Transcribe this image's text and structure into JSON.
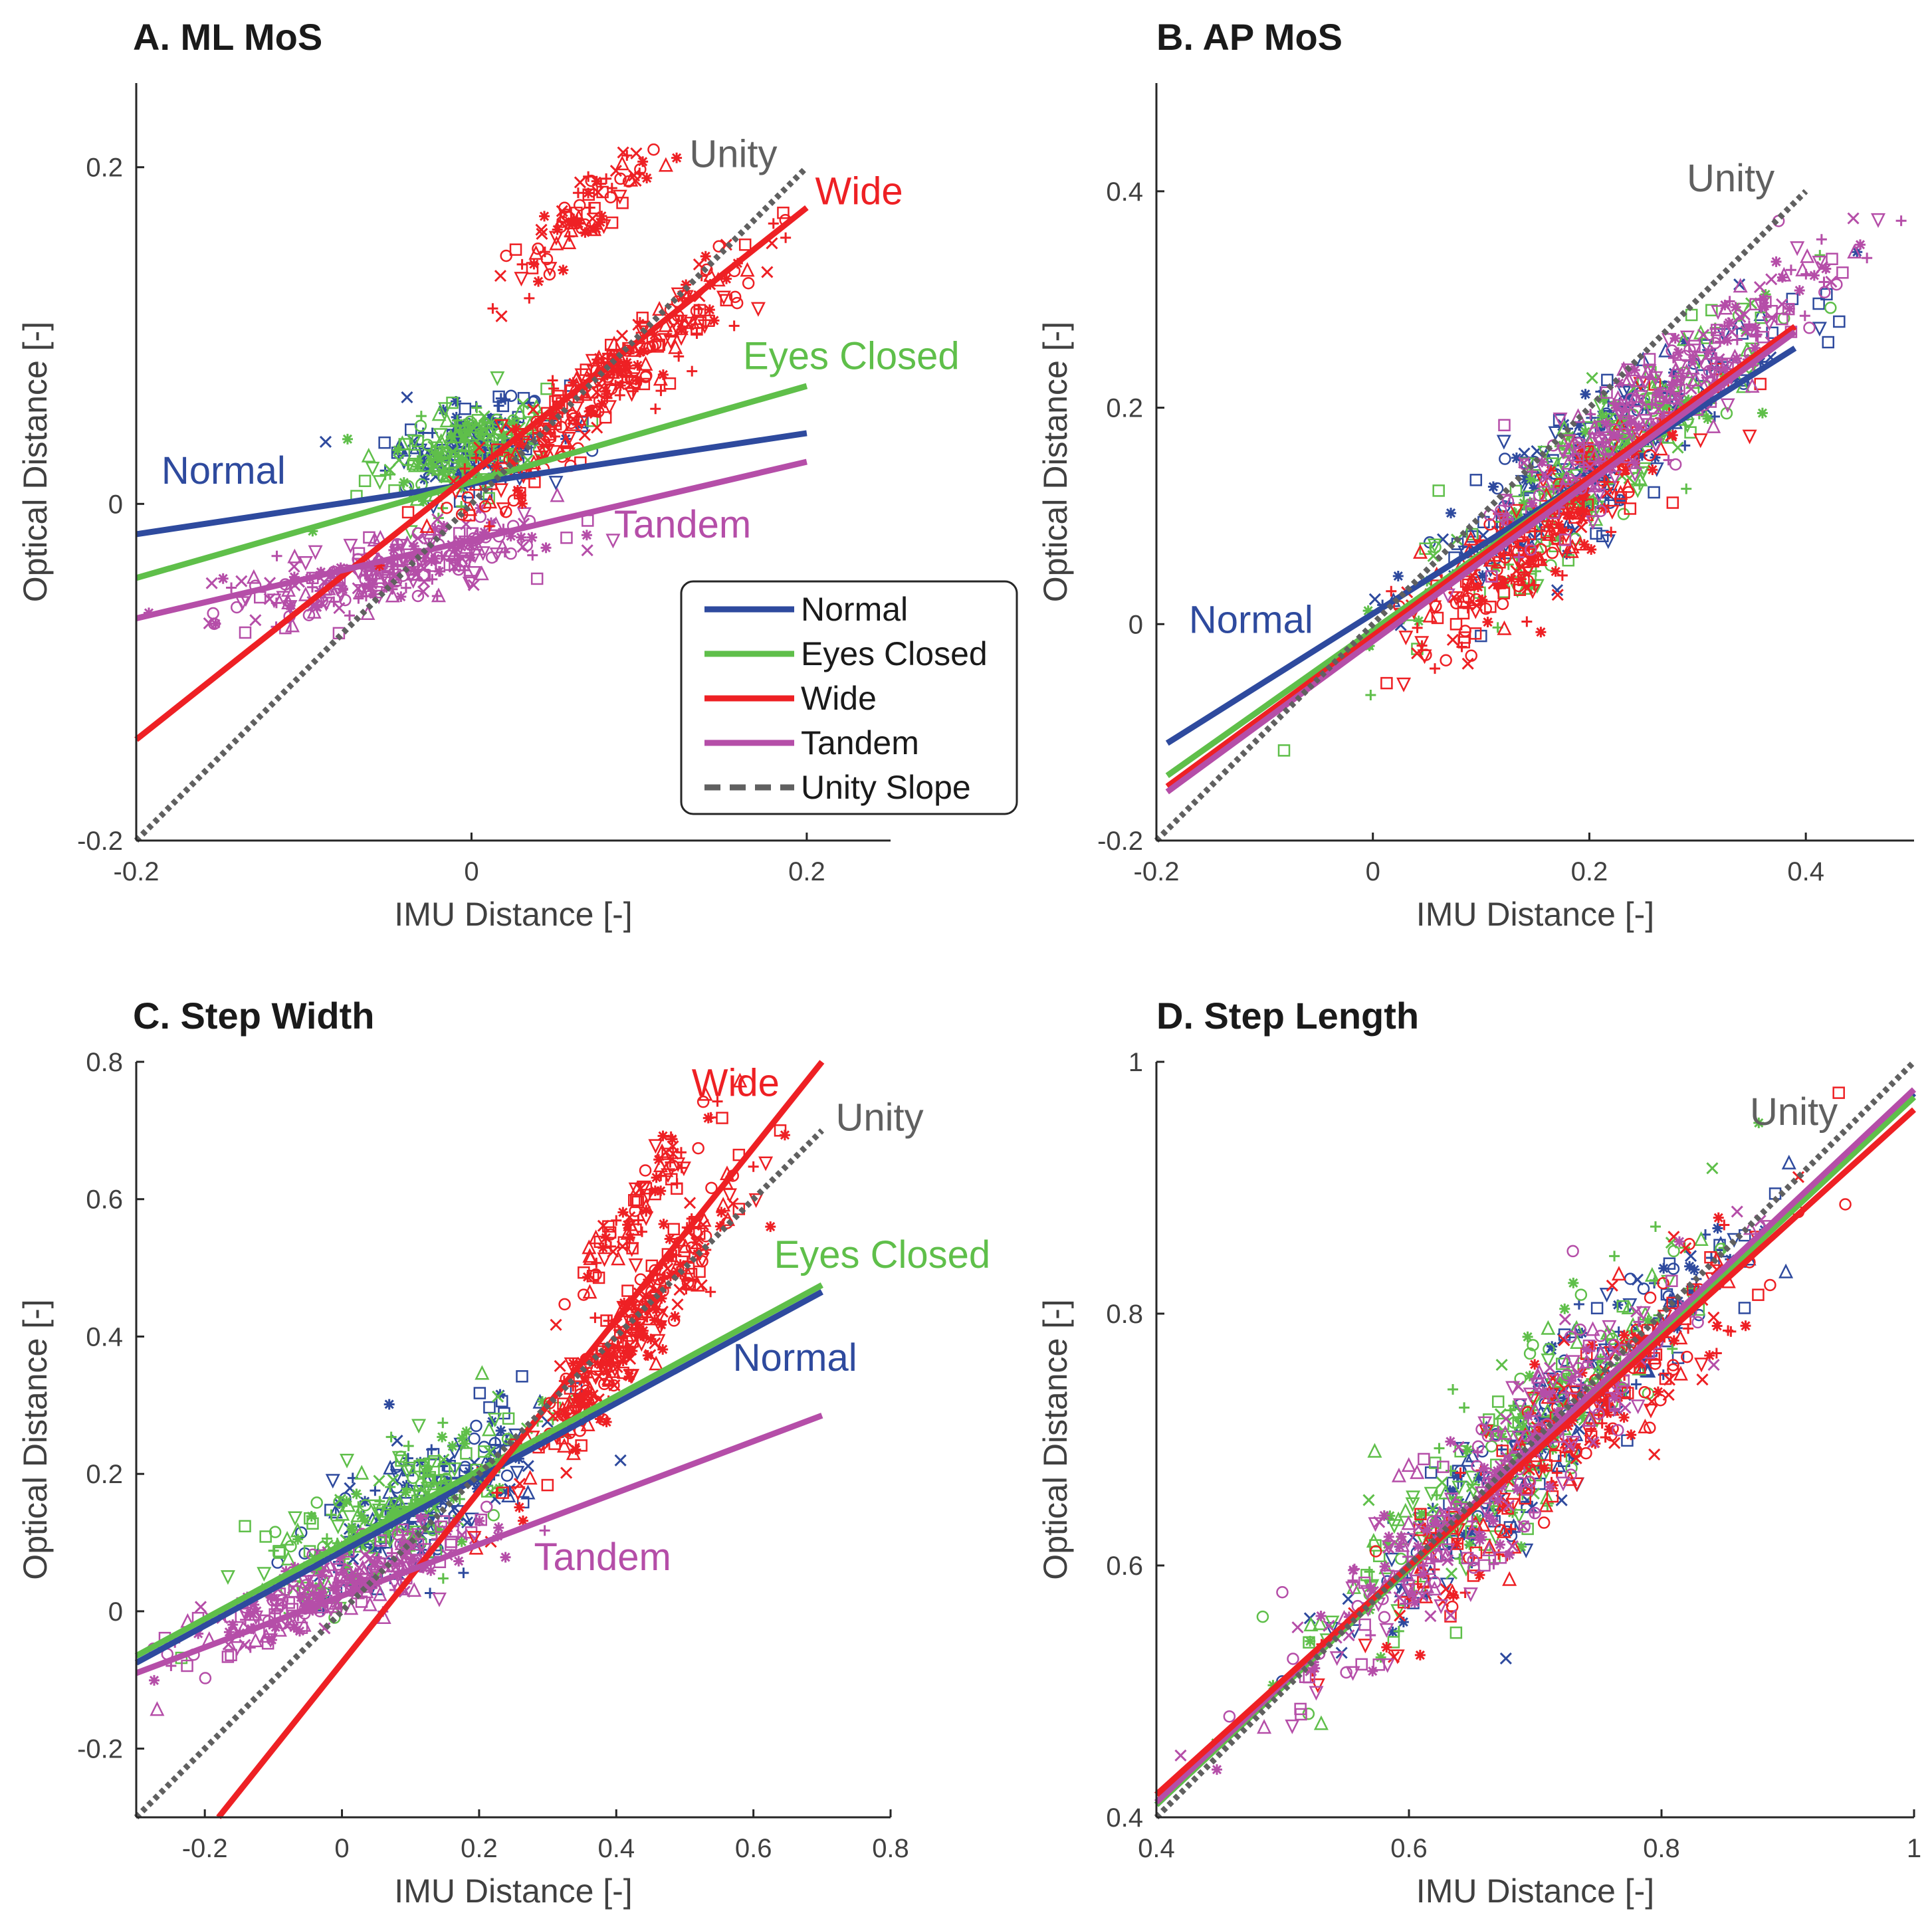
{
  "colors": {
    "Normal": "#2e4a9e",
    "Eyes Closed": "#5fbf4a",
    "Wide": "#ee2024",
    "Tandem": "#b54ea8",
    "Unity": "#606060"
  },
  "legend": {
    "entries": [
      {
        "label": "Normal",
        "series": "Normal",
        "style": "solid"
      },
      {
        "label": "Eyes Closed",
        "series": "Eyes Closed",
        "style": "solid"
      },
      {
        "label": "Wide",
        "series": "Wide",
        "style": "solid"
      },
      {
        "label": "Tandem",
        "series": "Tandem",
        "style": "solid"
      },
      {
        "label": "Unity Slope",
        "series": "Unity",
        "style": "dashed"
      }
    ]
  },
  "chart_data": [
    {
      "id": "A",
      "type": "scatter",
      "title": "A. ML MoS",
      "xlabel": "IMU Distance [-]",
      "ylabel": "Optical Distance [-]",
      "xlim": [
        -0.2,
        0.25
      ],
      "ylim": [
        -0.2,
        0.25
      ],
      "xticks": [
        -0.2,
        0,
        0.2
      ],
      "xtick_labels": [
        "-0.2",
        "0",
        "0.2"
      ],
      "yticks": [
        -0.2,
        0,
        0.2
      ],
      "ytick_labels": [
        "-0.2",
        "0",
        "0.2"
      ],
      "unity": {
        "x": [
          -0.2,
          0.2
        ]
      },
      "fits": [
        {
          "series": "Normal",
          "x": [
            -0.2,
            0.2
          ],
          "y": [
            -0.018,
            0.042
          ]
        },
        {
          "series": "Eyes Closed",
          "x": [
            -0.2,
            0.2
          ],
          "y": [
            -0.044,
            0.07
          ]
        },
        {
          "series": "Wide",
          "x": [
            -0.2,
            0.2
          ],
          "y": [
            -0.14,
            0.176
          ]
        },
        {
          "series": "Tandem",
          "x": [
            -0.2,
            0.2
          ],
          "y": [
            -0.068,
            0.025
          ]
        }
      ],
      "clouds": [
        {
          "series": "Normal",
          "cx": 0.0,
          "cy": 0.035,
          "sx": 0.025,
          "sy": 0.03,
          "n": 150
        },
        {
          "series": "Eyes Closed",
          "cx": -0.01,
          "cy": 0.03,
          "sx": 0.025,
          "sy": 0.03,
          "n": 170
        },
        {
          "series": "Tandem",
          "cx": -0.05,
          "cy": -0.04,
          "sx": 0.05,
          "sy": 0.022,
          "n": 260
        },
        {
          "series": "Wide",
          "cx": 0.08,
          "cy": 0.07,
          "sx": 0.045,
          "sy": 0.03,
          "n": 280
        },
        {
          "series": "Wide",
          "cx": 0.065,
          "cy": 0.17,
          "sx": 0.022,
          "sy": 0.025,
          "n": 90
        }
      ],
      "labels": [
        {
          "text": "Unity",
          "series": "Unity",
          "x": 0.13,
          "y": 0.2
        },
        {
          "text": "Wide",
          "series": "Wide",
          "x": 0.205,
          "y": 0.178
        },
        {
          "text": "Eyes Closed",
          "series": "Eyes Closed",
          "x": 0.162,
          "y": 0.08
        },
        {
          "text": "Normal",
          "series": "Normal",
          "x": -0.185,
          "y": 0.012
        },
        {
          "text": "Tandem",
          "series": "Tandem",
          "x": 0.085,
          "y": -0.02
        }
      ],
      "legend": "inside-lower-right"
    },
    {
      "id": "B",
      "type": "scatter",
      "title": "B. AP MoS",
      "xlabel": "IMU Distance [-]",
      "ylabel": "Optical Distance [-]",
      "xlim": [
        -0.2,
        0.5
      ],
      "ylim": [
        -0.2,
        0.5
      ],
      "xticks": [
        -0.2,
        0,
        0.2,
        0.4
      ],
      "xtick_labels": [
        "-0.2",
        "0",
        "0.2",
        "0.4"
      ],
      "yticks": [
        -0.2,
        0,
        0.2,
        0.4
      ],
      "ytick_labels": [
        "-0.2",
        "0",
        "0.2",
        "0.4"
      ],
      "unity": {
        "x": [
          -0.2,
          0.4
        ]
      },
      "fits": [
        {
          "series": "Normal",
          "x": [
            -0.19,
            0.39
          ],
          "y": [
            -0.11,
            0.255
          ]
        },
        {
          "series": "Eyes Closed",
          "x": [
            -0.19,
            0.39
          ],
          "y": [
            -0.14,
            0.27
          ]
        },
        {
          "series": "Wide",
          "x": [
            -0.19,
            0.39
          ],
          "y": [
            -0.15,
            0.275
          ]
        },
        {
          "series": "Tandem",
          "x": [
            -0.19,
            0.39
          ],
          "y": [
            -0.155,
            0.27
          ]
        }
      ],
      "clouds": [
        {
          "series": "Normal",
          "cx": 0.2,
          "cy": 0.15,
          "sx": 0.085,
          "sy": 0.07,
          "n": 220
        },
        {
          "series": "Eyes Closed",
          "cx": 0.2,
          "cy": 0.14,
          "sx": 0.085,
          "sy": 0.07,
          "n": 220
        },
        {
          "series": "Wide",
          "cx": 0.15,
          "cy": 0.08,
          "sx": 0.07,
          "sy": 0.06,
          "n": 240
        },
        {
          "series": "Tandem",
          "cx": 0.27,
          "cy": 0.21,
          "sx": 0.075,
          "sy": 0.055,
          "n": 280
        }
      ],
      "labels": [
        {
          "text": "Unity",
          "series": "Unity",
          "x": 0.29,
          "y": 0.4
        },
        {
          "text": "Normal",
          "series": "Normal",
          "x": -0.17,
          "y": -0.008
        }
      ],
      "legend": "none"
    },
    {
      "id": "C",
      "type": "scatter",
      "title": "C. Step Width",
      "xlabel": "IMU Distance [-]",
      "ylabel": "Optical Distance [-]",
      "xlim": [
        -0.3,
        0.8
      ],
      "ylim": [
        -0.3,
        0.8
      ],
      "xticks": [
        -0.2,
        0,
        0.2,
        0.4,
        0.6,
        0.8
      ],
      "xtick_labels": [
        "-0.2",
        "0",
        "0.2",
        "0.4",
        "0.6",
        "0.8"
      ],
      "yticks": [
        -0.2,
        0,
        0.2,
        0.4,
        0.6,
        0.8
      ],
      "ytick_labels": [
        "-0.2",
        "0",
        "0.2",
        "0.4",
        "0.6",
        "0.8"
      ],
      "unity": {
        "x": [
          -0.3,
          0.7
        ]
      },
      "fits": [
        {
          "series": "Normal",
          "x": [
            -0.3,
            0.7
          ],
          "y": [
            -0.075,
            0.465
          ]
        },
        {
          "series": "Eyes Closed",
          "x": [
            -0.3,
            0.7
          ],
          "y": [
            -0.065,
            0.475
          ]
        },
        {
          "series": "Wide",
          "x": [
            -0.18,
            0.7
          ],
          "y": [
            -0.3,
            0.8
          ]
        },
        {
          "series": "Tandem",
          "x": [
            -0.3,
            0.7
          ],
          "y": [
            -0.09,
            0.285
          ]
        }
      ],
      "clouds": [
        {
          "series": "Normal",
          "cx": 0.12,
          "cy": 0.16,
          "sx": 0.09,
          "sy": 0.1,
          "n": 180
        },
        {
          "series": "Eyes Closed",
          "cx": 0.08,
          "cy": 0.15,
          "sx": 0.11,
          "sy": 0.1,
          "n": 200
        },
        {
          "series": "Tandem",
          "cx": -0.02,
          "cy": 0.03,
          "sx": 0.11,
          "sy": 0.06,
          "n": 260
        },
        {
          "series": "Wide",
          "cx": 0.42,
          "cy": 0.4,
          "sx": 0.08,
          "sy": 0.08,
          "n": 300
        },
        {
          "series": "Wide",
          "cx": 0.44,
          "cy": 0.6,
          "sx": 0.05,
          "sy": 0.05,
          "n": 90
        }
      ],
      "labels": [
        {
          "text": "Wide",
          "series": "Wide",
          "x": 0.51,
          "y": 0.75
        },
        {
          "text": "Unity",
          "series": "Unity",
          "x": 0.72,
          "y": 0.7
        },
        {
          "text": "Eyes Closed",
          "series": "Eyes Closed",
          "x": 0.63,
          "y": 0.5
        },
        {
          "text": "Normal",
          "series": "Normal",
          "x": 0.57,
          "y": 0.35
        },
        {
          "text": "Tandem",
          "series": "Tandem",
          "x": 0.28,
          "y": 0.06
        }
      ],
      "legend": "none"
    },
    {
      "id": "D",
      "type": "scatter",
      "title": "D. Step Length",
      "xlabel": "IMU Distance [-]",
      "ylabel": "Optical Distance [-]",
      "xlim": [
        0.4,
        1.0
      ],
      "ylim": [
        0.4,
        1.0
      ],
      "xticks": [
        0.4,
        0.6,
        0.8,
        1.0
      ],
      "xtick_labels": [
        "0.4",
        "0.6",
        "0.8",
        "1"
      ],
      "yticks": [
        0.4,
        0.6,
        0.8,
        1.0
      ],
      "ytick_labels": [
        "0.4",
        "0.6",
        "0.8",
        "1"
      ],
      "unity": {
        "x": [
          0.4,
          1.0
        ]
      },
      "fits": [
        {
          "series": "Normal",
          "x": [
            0.4,
            1.0
          ],
          "y": [
            0.41,
            0.975
          ]
        },
        {
          "series": "Eyes Closed",
          "x": [
            0.4,
            1.0
          ],
          "y": [
            0.41,
            0.972
          ]
        },
        {
          "series": "Tandem",
          "x": [
            0.4,
            1.0
          ],
          "y": [
            0.412,
            0.978
          ]
        },
        {
          "series": "Wide",
          "x": [
            0.4,
            1.0
          ],
          "y": [
            0.418,
            0.962
          ]
        }
      ],
      "clouds": [
        {
          "series": "Normal",
          "cx": 0.72,
          "cy": 0.72,
          "sx": 0.075,
          "sy": 0.07,
          "n": 230
        },
        {
          "series": "Eyes Closed",
          "cx": 0.68,
          "cy": 0.69,
          "sx": 0.08,
          "sy": 0.075,
          "n": 230
        },
        {
          "series": "Wide",
          "cx": 0.74,
          "cy": 0.72,
          "sx": 0.08,
          "sy": 0.07,
          "n": 250
        },
        {
          "series": "Tandem",
          "cx": 0.66,
          "cy": 0.66,
          "sx": 0.08,
          "sy": 0.07,
          "n": 280
        }
      ],
      "labels": [
        {
          "text": "Unity",
          "series": "Unity",
          "x": 0.87,
          "y": 0.95
        }
      ],
      "legend": "none"
    }
  ]
}
